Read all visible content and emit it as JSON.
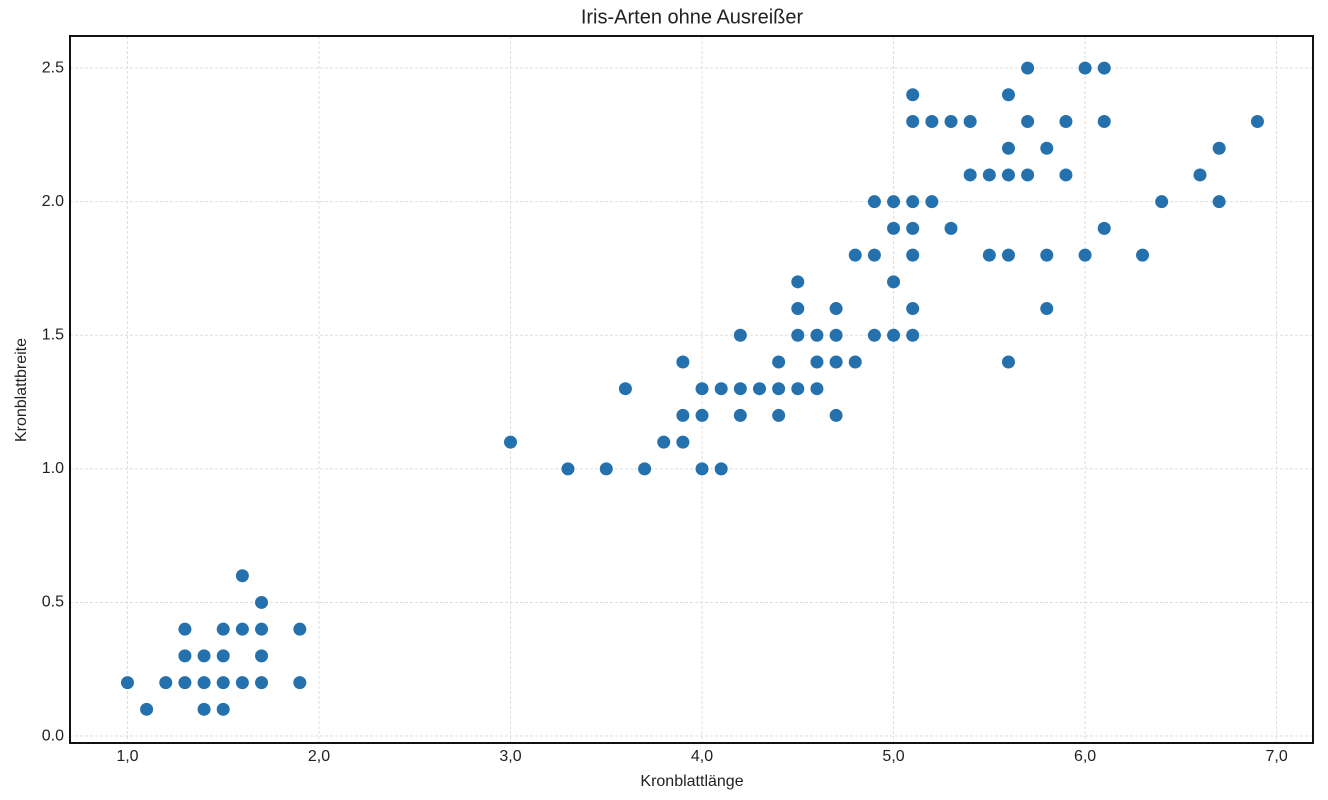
{
  "chart_data": {
    "type": "scatter",
    "title": "Iris-Arten ohne Ausreißer",
    "x_label": "Kronblattlänge",
    "y_label": "Kronblattbreite",
    "color": "#2471ad",
    "grid": true,
    "xlim": [
      0.7,
      7.19
    ],
    "ylim": [
      -0.026,
      2.62
    ],
    "xticks": [
      {
        "value": 1,
        "label": "1,0"
      },
      {
        "value": 2,
        "label": "2,0"
      },
      {
        "value": 3,
        "label": "3,0"
      },
      {
        "value": 4,
        "label": "4,0"
      },
      {
        "value": 5,
        "label": "5,0"
      },
      {
        "value": 6,
        "label": "6,0"
      },
      {
        "value": 7,
        "label": "7,0"
      }
    ],
    "yticks": [
      {
        "value": 0,
        "label": "0.0"
      },
      0.5,
      {
        "value": 1,
        "label": "1.0"
      },
      1.5,
      {
        "value": 2,
        "label": "2.0"
      },
      2.5
    ],
    "x": [
      1.0,
      1.2,
      1.3,
      1.4,
      1.5,
      1.6,
      1.7,
      1.9,
      1.1,
      1.4,
      1.5,
      1.3,
      1.4,
      1.5,
      1.7,
      1.3,
      1.5,
      1.6,
      1.7,
      1.9,
      1.7,
      1.6,
      3.3,
      3.5,
      3.7,
      4.0,
      4.1,
      3.0,
      3.8,
      3.9,
      3.9,
      4.0,
      4.2,
      4.4,
      4.7,
      3.6,
      4.0,
      4.1,
      4.2,
      4.3,
      4.4,
      4.5,
      4.6,
      3.9,
      4.4,
      4.6,
      4.7,
      4.8,
      5.6,
      4.2,
      4.5,
      4.6,
      4.7,
      4.9,
      5.0,
      5.1,
      4.5,
      4.7,
      5.1,
      5.8,
      4.5,
      5.0,
      4.8,
      4.9,
      5.1,
      5.5,
      5.6,
      5.8,
      6.0,
      6.3,
      5.0,
      5.1,
      5.3,
      6.1,
      4.9,
      5.0,
      5.1,
      5.2,
      6.4,
      6.7,
      5.4,
      5.5,
      5.6,
      5.7,
      5.9,
      6.6,
      5.6,
      5.8,
      6.7,
      5.1,
      5.2,
      5.3,
      5.4,
      5.7,
      5.9,
      6.1,
      6.9,
      5.1,
      5.6,
      5.7,
      6.0,
      6.1
    ],
    "values": [
      0.2,
      0.2,
      0.2,
      0.2,
      0.2,
      0.2,
      0.2,
      0.2,
      0.1,
      0.1,
      0.1,
      0.3,
      0.3,
      0.3,
      0.3,
      0.4,
      0.4,
      0.4,
      0.4,
      0.4,
      0.5,
      0.6,
      1.0,
      1.0,
      1.0,
      1.0,
      1.0,
      1.1,
      1.1,
      1.1,
      1.2,
      1.2,
      1.2,
      1.2,
      1.2,
      1.3,
      1.3,
      1.3,
      1.3,
      1.3,
      1.3,
      1.3,
      1.3,
      1.4,
      1.4,
      1.4,
      1.4,
      1.4,
      1.4,
      1.5,
      1.5,
      1.5,
      1.5,
      1.5,
      1.5,
      1.5,
      1.6,
      1.6,
      1.6,
      1.6,
      1.7,
      1.7,
      1.8,
      1.8,
      1.8,
      1.8,
      1.8,
      1.8,
      1.8,
      1.8,
      1.9,
      1.9,
      1.9,
      1.9,
      2.0,
      2.0,
      2.0,
      2.0,
      2.0,
      2.0,
      2.1,
      2.1,
      2.1,
      2.1,
      2.1,
      2.1,
      2.2,
      2.2,
      2.2,
      2.3,
      2.3,
      2.3,
      2.3,
      2.3,
      2.3,
      2.3,
      2.3,
      2.4,
      2.4,
      2.5,
      2.5,
      2.5
    ]
  }
}
